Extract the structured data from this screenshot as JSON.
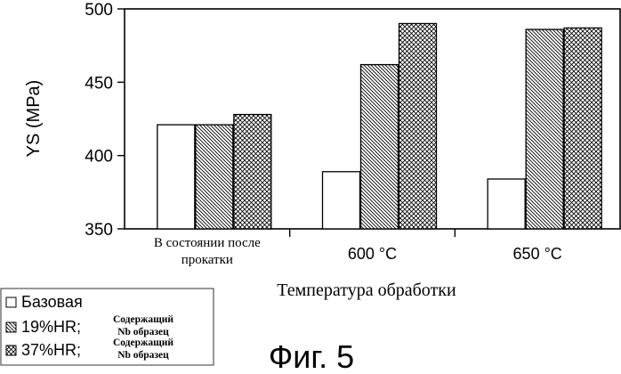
{
  "chart_data": {
    "type": "bar",
    "categories": [
      [
        "В состоянии после",
        "прокатки"
      ],
      [
        "600 °C"
      ],
      [
        "650 °C"
      ]
    ],
    "series": [
      {
        "name": "Базовая",
        "values": [
          421,
          389,
          384
        ],
        "pattern": "none"
      },
      {
        "name": "19%HR;",
        "name_note": [
          "Содержащий",
          "Nb образец"
        ],
        "values": [
          421,
          462,
          486
        ],
        "pattern": "hatch"
      },
      {
        "name": "37%HR;",
        "name_note": [
          "Содержащий",
          "Nb образец"
        ],
        "values": [
          428,
          490,
          487
        ],
        "pattern": "crosshatch"
      }
    ],
    "ylabel": "YS (MPa)",
    "xlabel": "Температура обработки",
    "ylim": [
      350,
      500
    ],
    "yticks": [
      350,
      400,
      450,
      500
    ],
    "grid": false,
    "legend_position": "bottom-left"
  },
  "caption": "Фиг. 5"
}
